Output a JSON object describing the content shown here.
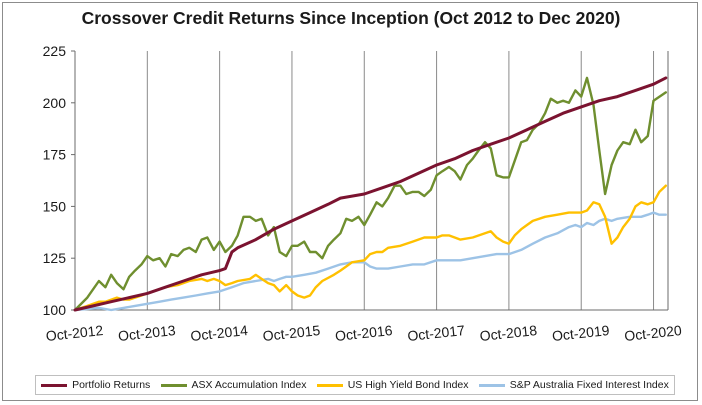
{
  "chart_data": {
    "type": "line",
    "title": "Crossover Credit Returns Since Inception (Oct 2012 to Dec 2020)",
    "xlabel": "",
    "ylabel": "",
    "ylim": [
      100,
      225
    ],
    "yticks": [
      100,
      125,
      150,
      175,
      200,
      225
    ],
    "xlim": [
      2012.75,
      2020.95
    ],
    "xticks": [
      {
        "x": 2012.75,
        "label": "Oct-2012"
      },
      {
        "x": 2013.75,
        "label": "Oct-2013"
      },
      {
        "x": 2014.75,
        "label": "Oct-2014"
      },
      {
        "x": 2015.75,
        "label": "Oct-2015"
      },
      {
        "x": 2016.75,
        "label": "Oct-2016"
      },
      {
        "x": 2017.75,
        "label": "Oct-2017"
      },
      {
        "x": 2018.75,
        "label": "Oct-2018"
      },
      {
        "x": 2019.75,
        "label": "Oct-2019"
      },
      {
        "x": 2020.75,
        "label": "Oct-2020"
      }
    ],
    "grid": {
      "vertical": true,
      "horizontal": false
    },
    "legend_position": "bottom",
    "series": [
      {
        "name": "Portfolio Returns",
        "color": "#7b1330",
        "points": [
          [
            2012.75,
            100
          ],
          [
            2013.0,
            102
          ],
          [
            2013.25,
            104
          ],
          [
            2013.5,
            106
          ],
          [
            2013.75,
            108
          ],
          [
            2014.0,
            111
          ],
          [
            2014.25,
            114
          ],
          [
            2014.5,
            117
          ],
          [
            2014.75,
            119
          ],
          [
            2014.83,
            120
          ],
          [
            2014.92,
            128
          ],
          [
            2015.0,
            130
          ],
          [
            2015.25,
            134
          ],
          [
            2015.5,
            139
          ],
          [
            2015.75,
            143
          ],
          [
            2016.0,
            147
          ],
          [
            2016.25,
            151
          ],
          [
            2016.42,
            154
          ],
          [
            2016.5,
            154.5
          ],
          [
            2016.75,
            156
          ],
          [
            2017.0,
            159
          ],
          [
            2017.25,
            162
          ],
          [
            2017.5,
            166
          ],
          [
            2017.75,
            170
          ],
          [
            2018.0,
            173
          ],
          [
            2018.25,
            177
          ],
          [
            2018.5,
            180
          ],
          [
            2018.75,
            183
          ],
          [
            2019.0,
            187
          ],
          [
            2019.25,
            191
          ],
          [
            2019.5,
            195
          ],
          [
            2019.75,
            198
          ],
          [
            2020.0,
            201
          ],
          [
            2020.25,
            203
          ],
          [
            2020.5,
            206
          ],
          [
            2020.75,
            209
          ],
          [
            2020.92,
            212
          ]
        ]
      },
      {
        "name": "ASX Accumulation Index",
        "color": "#6f8f2f",
        "points": [
          [
            2012.75,
            100
          ],
          [
            2012.92,
            106
          ],
          [
            2013.08,
            114
          ],
          [
            2013.17,
            111
          ],
          [
            2013.25,
            117
          ],
          [
            2013.33,
            113
          ],
          [
            2013.42,
            110
          ],
          [
            2013.5,
            116
          ],
          [
            2013.58,
            119
          ],
          [
            2013.67,
            122
          ],
          [
            2013.75,
            126
          ],
          [
            2013.83,
            124
          ],
          [
            2013.92,
            125
          ],
          [
            2014.0,
            121
          ],
          [
            2014.08,
            127
          ],
          [
            2014.17,
            126
          ],
          [
            2014.25,
            129
          ],
          [
            2014.33,
            130
          ],
          [
            2014.42,
            128
          ],
          [
            2014.5,
            134
          ],
          [
            2014.58,
            135
          ],
          [
            2014.67,
            129
          ],
          [
            2014.75,
            133
          ],
          [
            2014.83,
            128
          ],
          [
            2014.92,
            131
          ],
          [
            2015.0,
            136
          ],
          [
            2015.08,
            145
          ],
          [
            2015.17,
            145
          ],
          [
            2015.25,
            143
          ],
          [
            2015.33,
            144
          ],
          [
            2015.42,
            136
          ],
          [
            2015.5,
            140
          ],
          [
            2015.58,
            128
          ],
          [
            2015.67,
            126
          ],
          [
            2015.75,
            131
          ],
          [
            2015.83,
            131
          ],
          [
            2015.92,
            133
          ],
          [
            2016.0,
            128
          ],
          [
            2016.08,
            128
          ],
          [
            2016.17,
            125
          ],
          [
            2016.25,
            131
          ],
          [
            2016.33,
            134
          ],
          [
            2016.42,
            137
          ],
          [
            2016.5,
            144
          ],
          [
            2016.58,
            143
          ],
          [
            2016.67,
            145
          ],
          [
            2016.75,
            141
          ],
          [
            2016.83,
            146
          ],
          [
            2016.92,
            152
          ],
          [
            2017.0,
            150
          ],
          [
            2017.08,
            154
          ],
          [
            2017.17,
            160
          ],
          [
            2017.25,
            160
          ],
          [
            2017.33,
            156
          ],
          [
            2017.42,
            157
          ],
          [
            2017.5,
            157
          ],
          [
            2017.58,
            155
          ],
          [
            2017.67,
            158
          ],
          [
            2017.75,
            165
          ],
          [
            2017.83,
            167
          ],
          [
            2017.92,
            169
          ],
          [
            2018.0,
            167
          ],
          [
            2018.08,
            163
          ],
          [
            2018.17,
            170
          ],
          [
            2018.25,
            173
          ],
          [
            2018.33,
            177
          ],
          [
            2018.42,
            181
          ],
          [
            2018.5,
            178
          ],
          [
            2018.58,
            165
          ],
          [
            2018.67,
            164
          ],
          [
            2018.75,
            164
          ],
          [
            2018.83,
            172
          ],
          [
            2018.92,
            181
          ],
          [
            2019.0,
            182
          ],
          [
            2019.08,
            187
          ],
          [
            2019.17,
            190
          ],
          [
            2019.25,
            195
          ],
          [
            2019.33,
            202
          ],
          [
            2019.42,
            200
          ],
          [
            2019.5,
            201
          ],
          [
            2019.58,
            200
          ],
          [
            2019.67,
            206
          ],
          [
            2019.75,
            203
          ],
          [
            2019.83,
            212
          ],
          [
            2019.92,
            199
          ],
          [
            2020.0,
            177
          ],
          [
            2020.08,
            156
          ],
          [
            2020.17,
            170
          ],
          [
            2020.25,
            177
          ],
          [
            2020.33,
            181
          ],
          [
            2020.42,
            180
          ],
          [
            2020.5,
            187
          ],
          [
            2020.58,
            181
          ],
          [
            2020.67,
            184
          ],
          [
            2020.75,
            201
          ],
          [
            2020.92,
            205
          ]
        ]
      },
      {
        "name": "US High Yield Bond Index",
        "color": "#ffc000",
        "points": [
          [
            2012.75,
            100
          ],
          [
            2012.92,
            102
          ],
          [
            2013.08,
            104
          ],
          [
            2013.17,
            104
          ],
          [
            2013.33,
            106
          ],
          [
            2013.42,
            105
          ],
          [
            2013.5,
            105
          ],
          [
            2013.67,
            107
          ],
          [
            2013.83,
            109
          ],
          [
            2014.0,
            111
          ],
          [
            2014.17,
            112
          ],
          [
            2014.33,
            114
          ],
          [
            2014.5,
            115
          ],
          [
            2014.58,
            114
          ],
          [
            2014.67,
            115
          ],
          [
            2014.75,
            114
          ],
          [
            2014.83,
            112
          ],
          [
            2014.92,
            113
          ],
          [
            2015.0,
            114
          ],
          [
            2015.17,
            115
          ],
          [
            2015.25,
            117
          ],
          [
            2015.33,
            115
          ],
          [
            2015.42,
            113
          ],
          [
            2015.5,
            112
          ],
          [
            2015.58,
            109
          ],
          [
            2015.67,
            112
          ],
          [
            2015.75,
            109
          ],
          [
            2015.83,
            107
          ],
          [
            2015.92,
            106
          ],
          [
            2016.0,
            107
          ],
          [
            2016.08,
            111
          ],
          [
            2016.17,
            114
          ],
          [
            2016.33,
            117
          ],
          [
            2016.42,
            119
          ],
          [
            2016.5,
            121
          ],
          [
            2016.58,
            123
          ],
          [
            2016.75,
            124
          ],
          [
            2016.83,
            127
          ],
          [
            2016.92,
            128
          ],
          [
            2017.0,
            128
          ],
          [
            2017.08,
            130
          ],
          [
            2017.25,
            131
          ],
          [
            2017.42,
            133
          ],
          [
            2017.58,
            135
          ],
          [
            2017.75,
            135
          ],
          [
            2017.83,
            136
          ],
          [
            2017.92,
            136
          ],
          [
            2018.0,
            135
          ],
          [
            2018.08,
            134
          ],
          [
            2018.25,
            135
          ],
          [
            2018.42,
            137
          ],
          [
            2018.5,
            138
          ],
          [
            2018.58,
            135
          ],
          [
            2018.67,
            133
          ],
          [
            2018.75,
            132
          ],
          [
            2018.83,
            136
          ],
          [
            2018.92,
            139
          ],
          [
            2019.0,
            141
          ],
          [
            2019.08,
            143
          ],
          [
            2019.25,
            145
          ],
          [
            2019.42,
            146
          ],
          [
            2019.58,
            147
          ],
          [
            2019.75,
            147
          ],
          [
            2019.83,
            148
          ],
          [
            2019.92,
            152
          ],
          [
            2020.0,
            151
          ],
          [
            2020.08,
            145
          ],
          [
            2020.17,
            132
          ],
          [
            2020.25,
            135
          ],
          [
            2020.33,
            140
          ],
          [
            2020.42,
            144
          ],
          [
            2020.5,
            150
          ],
          [
            2020.58,
            152
          ],
          [
            2020.67,
            151
          ],
          [
            2020.75,
            152
          ],
          [
            2020.83,
            157
          ],
          [
            2020.92,
            160
          ]
        ]
      },
      {
        "name": "S&P Australia Fixed Interest Index",
        "color": "#9dc3e6",
        "points": [
          [
            2012.75,
            100
          ],
          [
            2012.92,
            100.5
          ],
          [
            2013.08,
            101
          ],
          [
            2013.25,
            100
          ],
          [
            2013.42,
            101
          ],
          [
            2013.58,
            102
          ],
          [
            2013.75,
            103
          ],
          [
            2013.92,
            104
          ],
          [
            2014.08,
            105
          ],
          [
            2014.25,
            106
          ],
          [
            2014.42,
            107
          ],
          [
            2014.58,
            108
          ],
          [
            2014.75,
            109
          ],
          [
            2014.92,
            111
          ],
          [
            2015.08,
            113
          ],
          [
            2015.25,
            114
          ],
          [
            2015.42,
            115
          ],
          [
            2015.5,
            114
          ],
          [
            2015.58,
            115
          ],
          [
            2015.67,
            116
          ],
          [
            2015.75,
            116
          ],
          [
            2015.92,
            117
          ],
          [
            2016.08,
            118
          ],
          [
            2016.25,
            120
          ],
          [
            2016.42,
            122
          ],
          [
            2016.58,
            123
          ],
          [
            2016.75,
            123
          ],
          [
            2016.83,
            121
          ],
          [
            2016.92,
            120
          ],
          [
            2017.08,
            120
          ],
          [
            2017.25,
            121
          ],
          [
            2017.42,
            122
          ],
          [
            2017.58,
            122
          ],
          [
            2017.75,
            124
          ],
          [
            2017.92,
            124
          ],
          [
            2018.08,
            124
          ],
          [
            2018.25,
            125
          ],
          [
            2018.42,
            126
          ],
          [
            2018.58,
            127
          ],
          [
            2018.75,
            127
          ],
          [
            2018.92,
            129
          ],
          [
            2019.08,
            132
          ],
          [
            2019.25,
            135
          ],
          [
            2019.42,
            137
          ],
          [
            2019.58,
            140
          ],
          [
            2019.67,
            141
          ],
          [
            2019.75,
            140
          ],
          [
            2019.83,
            142
          ],
          [
            2019.92,
            141
          ],
          [
            2020.0,
            143
          ],
          [
            2020.08,
            144
          ],
          [
            2020.17,
            143
          ],
          [
            2020.25,
            144
          ],
          [
            2020.42,
            145
          ],
          [
            2020.58,
            145
          ],
          [
            2020.67,
            146
          ],
          [
            2020.75,
            147
          ],
          [
            2020.83,
            146
          ],
          [
            2020.92,
            146
          ]
        ]
      }
    ]
  }
}
